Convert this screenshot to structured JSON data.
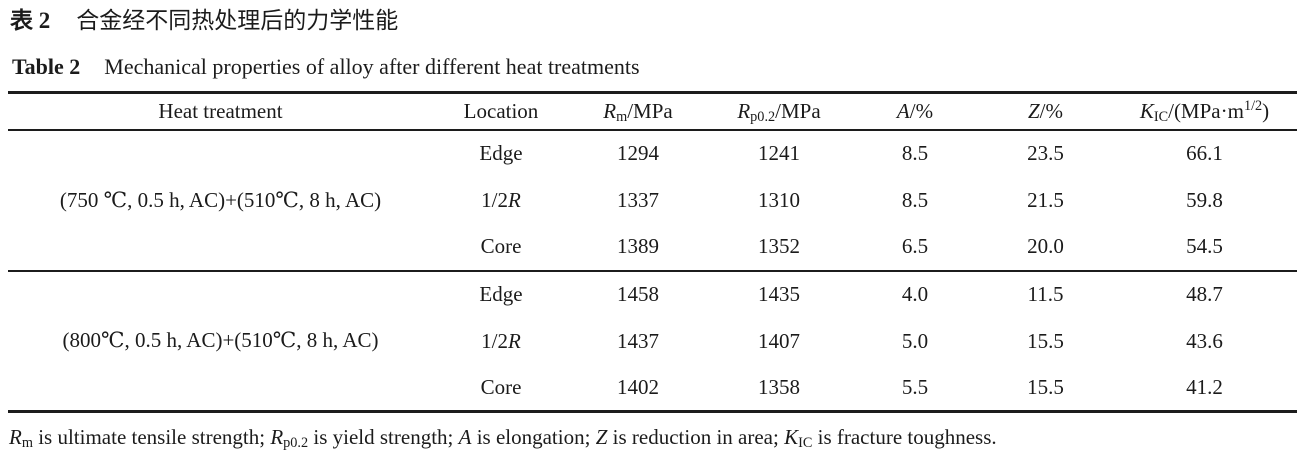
{
  "titles": {
    "zh_label": "表 2",
    "zh_text": "合金经不同热处理后的力学性能",
    "en_label": "Table 2",
    "en_text": "Mechanical properties of alloy after different heat treatments"
  },
  "table": {
    "headers": {
      "heat_treatment": [
        {
          "t": "Heat treatment"
        }
      ],
      "location": [
        {
          "t": "Location"
        }
      ],
      "rm": [
        {
          "t": "R",
          "i": true
        },
        {
          "t": "m",
          "sub": true
        },
        {
          "t": "/MPa"
        }
      ],
      "rp02": [
        {
          "t": "R",
          "i": true
        },
        {
          "t": "p0.2",
          "sub": true
        },
        {
          "t": "/MPa"
        }
      ],
      "a": [
        {
          "t": "A",
          "i": true
        },
        {
          "t": "/%"
        }
      ],
      "z": [
        {
          "t": "Z",
          "i": true
        },
        {
          "t": "/%"
        }
      ],
      "kic": [
        {
          "t": "K",
          "i": true
        },
        {
          "t": "IC",
          "sub": true
        },
        {
          "t": "/(MPa·m"
        },
        {
          "t": "1/2",
          "sup": true
        },
        {
          "t": ")"
        }
      ]
    },
    "groups": [
      {
        "heat_treatment": "(750 ℃, 0.5 h, AC)+(510℃, 8 h, AC)",
        "rows": [
          {
            "location": [
              {
                "t": "Edge"
              }
            ],
            "rm": "1294",
            "rp02": "1241",
            "a": "8.5",
            "z": "23.5",
            "kic": "66.1"
          },
          {
            "location": [
              {
                "t": "1/2"
              },
              {
                "t": "R",
                "i": true
              }
            ],
            "rm": "1337",
            "rp02": "1310",
            "a": "8.5",
            "z": "21.5",
            "kic": "59.8"
          },
          {
            "location": [
              {
                "t": "Core"
              }
            ],
            "rm": "1389",
            "rp02": "1352",
            "a": "6.5",
            "z": "20.0",
            "kic": "54.5"
          }
        ]
      },
      {
        "heat_treatment": "(800℃, 0.5 h, AC)+(510℃, 8 h, AC)",
        "rows": [
          {
            "location": [
              {
                "t": "Edge"
              }
            ],
            "rm": "1458",
            "rp02": "1435",
            "a": "4.0",
            "z": "11.5",
            "kic": "48.7"
          },
          {
            "location": [
              {
                "t": "1/2"
              },
              {
                "t": "R",
                "i": true
              }
            ],
            "rm": "1437",
            "rp02": "1407",
            "a": "5.0",
            "z": "15.5",
            "kic": "43.6"
          },
          {
            "location": [
              {
                "t": "Core"
              }
            ],
            "rm": "1402",
            "rp02": "1358",
            "a": "5.5",
            "z": "15.5",
            "kic": "41.2"
          }
        ]
      }
    ]
  },
  "footnote": [
    {
      "t": "R",
      "i": true
    },
    {
      "t": "m",
      "sub": true
    },
    {
      "t": " is ultimate tensile strength; "
    },
    {
      "t": "R",
      "i": true
    },
    {
      "t": "p0.2",
      "sub": true
    },
    {
      "t": " is yield strength; "
    },
    {
      "t": "A",
      "i": true
    },
    {
      "t": " is elongation; "
    },
    {
      "t": "Z",
      "i": true
    },
    {
      "t": " is reduction in area; "
    },
    {
      "t": "K",
      "i": true
    },
    {
      "t": "IC",
      "sub": true
    },
    {
      "t": " is fracture toughness."
    }
  ]
}
